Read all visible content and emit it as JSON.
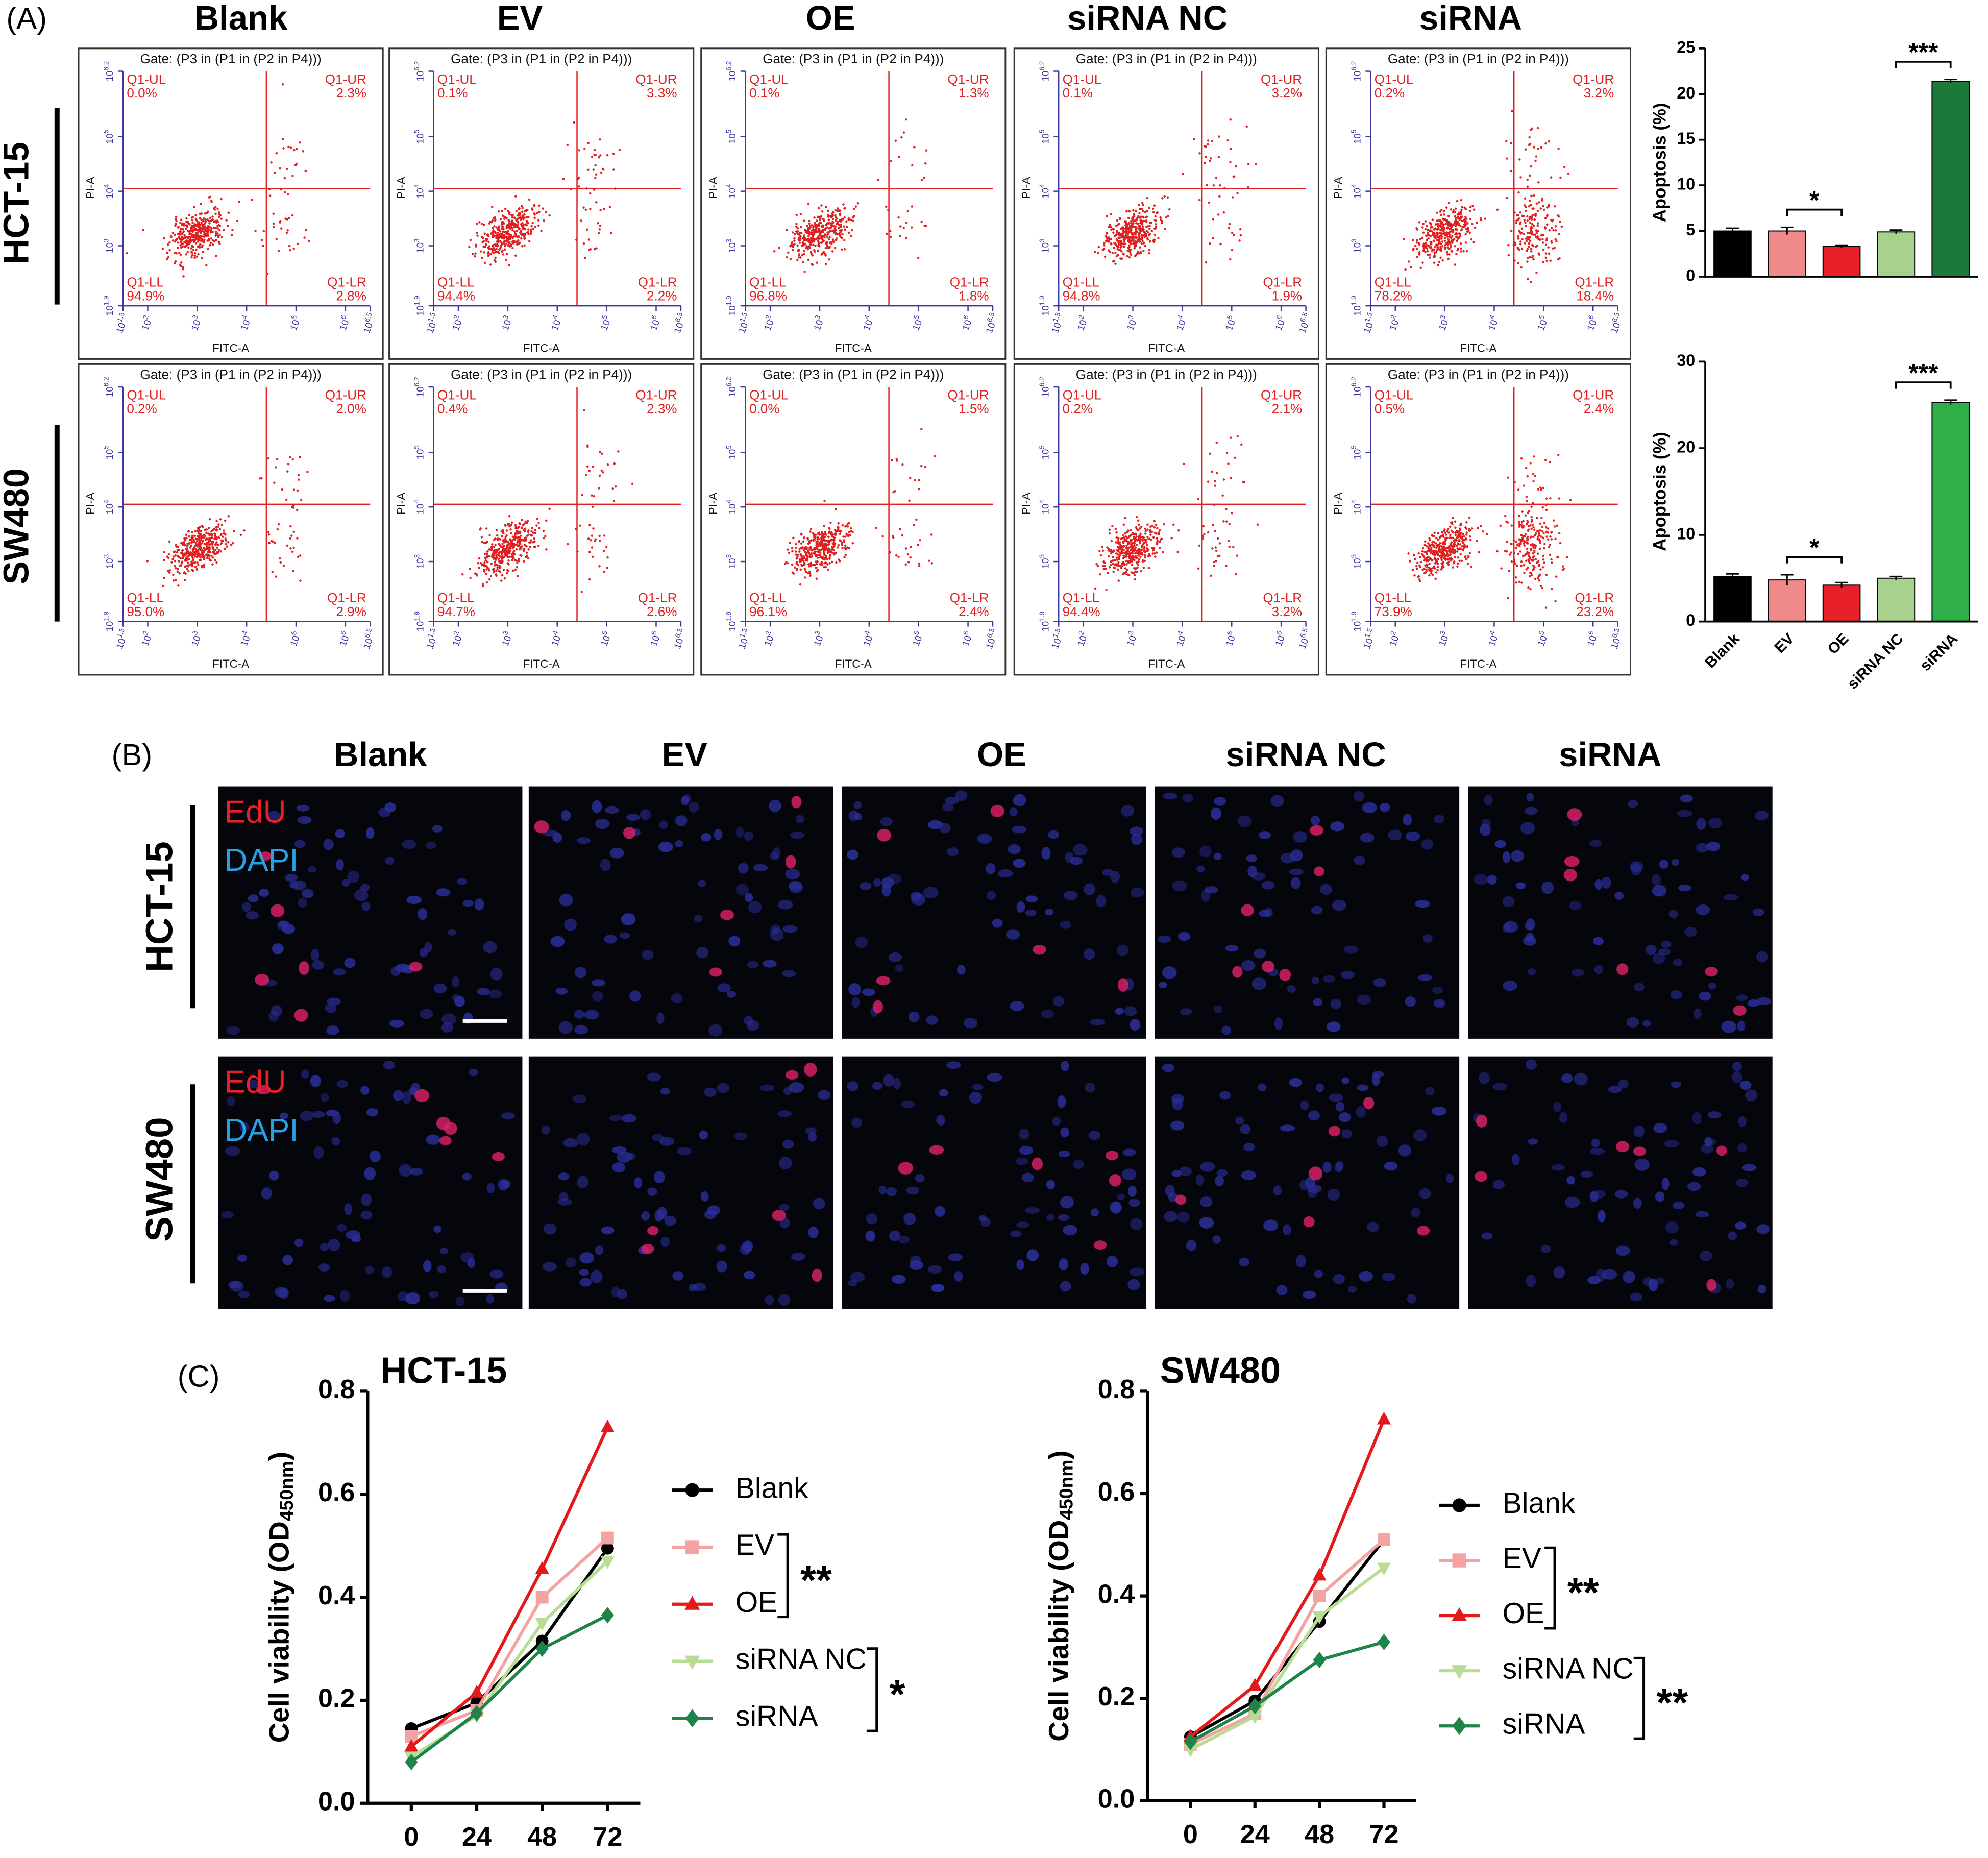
{
  "panel_labels": [
    "(A)",
    "(B)",
    "(C)"
  ],
  "groups": [
    "Blank",
    "EV",
    "OE",
    "siRNA NC",
    "siRNA"
  ],
  "cell_lines": [
    "HCT-15",
    "SW480"
  ],
  "stains": [
    "EdU",
    "DAPI"
  ],
  "flow": {
    "gate": "Gate: (P3 in (P1 in (P2 in P4)))",
    "xlabel": "FITC-A",
    "ylabel": "PI-A",
    "quadrants": [
      "Q1-UL",
      "Q1-UR",
      "Q1-LL",
      "Q1-LR"
    ],
    "tick_base": "10",
    "xtick_exponents": [
      "1.5",
      "2",
      "3",
      "4",
      "5",
      "6",
      "6.5"
    ],
    "ytick_exponents": [
      "1.9",
      "3",
      "4",
      "5",
      "6.2"
    ],
    "percentages": [
      [
        [
          "0.0%",
          "2.3%",
          "94.9%",
          "2.8%"
        ],
        [
          "0.1%",
          "3.3%",
          "94.4%",
          "2.2%"
        ],
        [
          "0.1%",
          "1.3%",
          "96.8%",
          "1.8%"
        ],
        [
          "0.1%",
          "3.2%",
          "94.8%",
          "1.9%"
        ],
        [
          "0.2%",
          "3.2%",
          "78.2%",
          "18.4%"
        ]
      ],
      [
        [
          "0.2%",
          "2.0%",
          "95.0%",
          "2.9%"
        ],
        [
          "0.4%",
          "2.3%",
          "94.7%",
          "2.6%"
        ],
        [
          "0.0%",
          "1.5%",
          "96.1%",
          "2.4%"
        ],
        [
          "0.2%",
          "2.1%",
          "94.4%",
          "3.2%"
        ],
        [
          "0.5%",
          "2.4%",
          "73.9%",
          "23.2%"
        ]
      ]
    ]
  },
  "chart_data": [
    {
      "type": "bar",
      "ylabel": "Apoptosis (%)",
      "values": [
        5.0,
        5.0,
        3.3,
        4.9,
        21.4
      ],
      "errors": [
        0.3,
        0.4,
        0.15,
        0.2,
        0.2
      ],
      "colors": [
        "#000000",
        "#f08a8a",
        "#e8202a",
        "#a9d18e",
        "#1b7a3a"
      ],
      "ylim": [
        0,
        25
      ],
      "yticks": [
        0,
        5,
        10,
        15,
        20,
        25
      ],
      "annotations": [
        {
          "text": "*",
          "between": [
            "EV",
            "OE"
          ]
        },
        {
          "text": "***",
          "between": [
            "siRNA NC",
            "siRNA"
          ]
        }
      ]
    },
    {
      "type": "bar",
      "ylabel": "Apoptosis (%)",
      "categories": [
        "Blank",
        "EV",
        "OE",
        "siRNA NC",
        "siRNA"
      ],
      "values": [
        5.2,
        4.8,
        4.2,
        5.0,
        25.3
      ],
      "errors": [
        0.3,
        0.6,
        0.3,
        0.2,
        0.25
      ],
      "colors": [
        "#000000",
        "#f08a8a",
        "#e8202a",
        "#a9d18e",
        "#2fae4a"
      ],
      "ylim": [
        0,
        30
      ],
      "yticks": [
        0,
        10,
        20,
        30
      ],
      "annotations": [
        {
          "text": "*",
          "between": [
            "EV",
            "OE"
          ]
        },
        {
          "text": "***",
          "between": [
            "siRNA NC",
            "siRNA"
          ]
        }
      ]
    },
    {
      "type": "line",
      "title": "HCT-15",
      "ylabel": "Cell viability (OD",
      "ylabel_sub": "450nm",
      "ylabel_end": ")",
      "x": [
        0,
        24,
        48,
        72
      ],
      "xlim": [
        -16,
        84
      ],
      "xticks": [
        0,
        24,
        48,
        72
      ],
      "ylim": [
        0,
        0.8
      ],
      "yticks": [
        {
          "value": 0,
          "label": "0.0"
        },
        0.2,
        0.4,
        0.6,
        0.8
      ],
      "series": [
        {
          "name": "Blank",
          "color": "#000000",
          "marker": "circle",
          "values": [
            0.145,
            0.195,
            0.315,
            0.495
          ]
        },
        {
          "name": "EV",
          "color": "#f4a3a3",
          "marker": "square",
          "values": [
            0.13,
            0.18,
            0.4,
            0.515
          ]
        },
        {
          "name": "OE",
          "color": "#e31a1c",
          "marker": "triangle-up",
          "values": [
            0.11,
            0.215,
            0.455,
            0.73
          ]
        },
        {
          "name": "siRNA NC",
          "color": "#b7dc93",
          "marker": "triangle-down",
          "values": [
            0.09,
            0.17,
            0.35,
            0.47
          ]
        },
        {
          "name": "siRNA",
          "color": "#1e8449",
          "marker": "diamond",
          "values": [
            0.08,
            0.175,
            0.3,
            0.365
          ]
        }
      ],
      "annotations": [
        {
          "text": "**",
          "between": [
            "EV",
            "OE"
          ]
        },
        {
          "text": "*",
          "between": [
            "siRNA NC",
            "siRNA"
          ]
        }
      ]
    },
    {
      "type": "line",
      "title": "SW480",
      "ylabel": "Cell viability (OD",
      "ylabel_sub": "450nm",
      "ylabel_end": ")",
      "x": [
        0,
        24,
        48,
        72
      ],
      "xlim": [
        -16,
        84
      ],
      "xticks": [
        0,
        24,
        48,
        72
      ],
      "ylim": [
        0,
        0.8
      ],
      "yticks": [
        {
          "value": 0,
          "label": "0.0"
        },
        0.2,
        0.4,
        0.6,
        0.8
      ],
      "series": [
        {
          "name": "Blank",
          "color": "#000000",
          "marker": "circle",
          "values": [
            0.125,
            0.195,
            0.35,
            0.51
          ]
        },
        {
          "name": "EV",
          "color": "#f4a3a3",
          "marker": "square",
          "values": [
            0.11,
            0.17,
            0.4,
            0.51
          ]
        },
        {
          "name": "OE",
          "color": "#e31a1c",
          "marker": "triangle-up",
          "values": [
            0.125,
            0.225,
            0.44,
            0.745
          ]
        },
        {
          "name": "siRNA NC",
          "color": "#b7dc93",
          "marker": "triangle-down",
          "values": [
            0.1,
            0.165,
            0.36,
            0.455
          ]
        },
        {
          "name": "siRNA",
          "color": "#1e8449",
          "marker": "diamond",
          "values": [
            0.115,
            0.185,
            0.275,
            0.31
          ]
        }
      ],
      "annotations": [
        {
          "text": "**",
          "between": [
            "EV",
            "OE"
          ]
        },
        {
          "text": "**",
          "between": [
            "siRNA NC",
            "siRNA"
          ]
        }
      ]
    }
  ]
}
